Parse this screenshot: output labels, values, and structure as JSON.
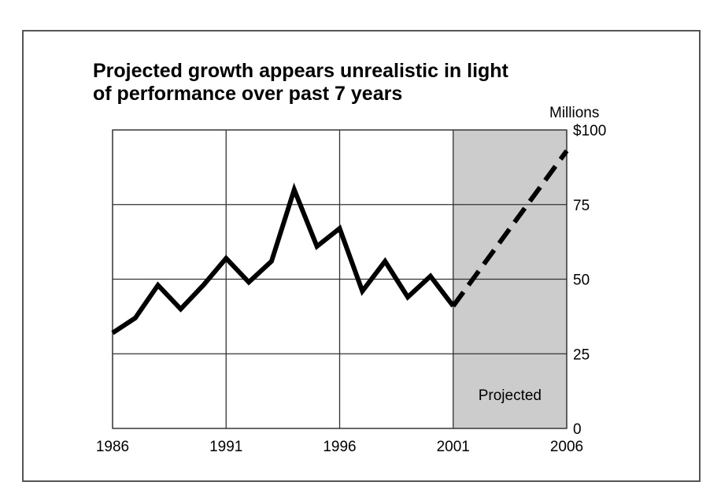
{
  "chart_data": {
    "type": "line",
    "title_lines": [
      "Projected growth appears unrealistic in light",
      "of performance over past 7 years"
    ],
    "ylabel": "Millions",
    "x_ticks": [
      "1986",
      "1991",
      "1996",
      "2001",
      "2006"
    ],
    "y_ticks": [
      "0",
      "25",
      "50",
      "75",
      "$100"
    ],
    "xlim": [
      1986,
      2006
    ],
    "ylim": [
      0,
      100
    ],
    "grid": true,
    "shaded_region": {
      "x_start": 2001,
      "x_end": 2006,
      "label": "Projected",
      "color": "#cccccc"
    },
    "series": [
      {
        "style": "solid",
        "x": [
          1986,
          1987,
          1988,
          1989,
          1990,
          1991,
          1992,
          1993,
          1994,
          1995,
          1996,
          1997,
          1998,
          1999,
          2000,
          2001
        ],
        "y": [
          32,
          37,
          48,
          40,
          48,
          57,
          49,
          56,
          80,
          61,
          67,
          46,
          56,
          44,
          51,
          41
        ]
      },
      {
        "style": "dashed",
        "x": [
          2001,
          2006
        ],
        "y": [
          41,
          93
        ]
      }
    ]
  }
}
